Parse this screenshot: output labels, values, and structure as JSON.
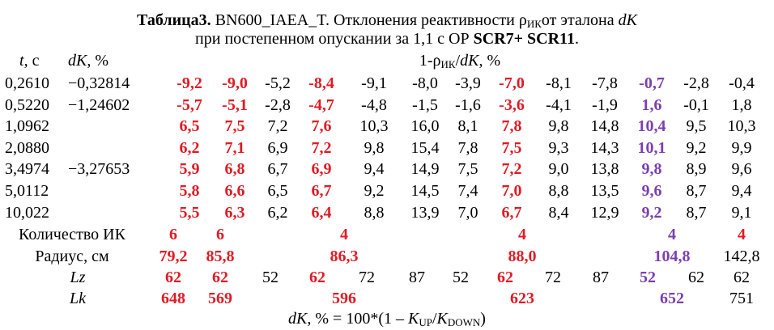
{
  "title": {
    "bold": "Таблица3.",
    "main": " BN600_IAEA_T. Отклонения реактивности ρ",
    "sub": "ИК",
    "mid": "от эталона ",
    "dk": "dK",
    "line2_a": "при постепенном опускании за 1,1 с ОР ",
    "line2_b": "SCR7+ SCR11",
    "line2_c": "."
  },
  "header": {
    "t": "t",
    "t_unit": ", с",
    "dk": "dK",
    "dk_unit": ", %",
    "rho_a": "1-ρ",
    "rho_sub": "ИК",
    "rho_b": "/",
    "rho_dk": "dK",
    "rho_c": ", %"
  },
  "rows": [
    {
      "t": "0,2610",
      "dk": "−0,32814",
      "v": [
        "-9,2",
        "-9,0",
        "-5,2",
        "-8,4",
        "-9,1",
        "-8,0",
        "-3,9",
        "-7,0",
        "-8,1",
        "-7,8",
        "-0,7",
        "-2,8",
        "-0,4"
      ]
    },
    {
      "t": "0,5220",
      "dk": "−1,24602",
      "v": [
        "-5,7",
        "-5,1",
        "-2,8",
        "-4,7",
        "-4,8",
        "-1,5",
        "-1,6",
        "-3,6",
        "-4,1",
        "-1,9",
        "1,6",
        "-0,1",
        "1,8"
      ]
    },
    {
      "t": "1,0962",
      "dk": "",
      "v": [
        "6,5",
        "7,5",
        "7,2",
        "7,6",
        "10,3",
        "16,0",
        "8,1",
        "7,8",
        "9,8",
        "14,8",
        "10,4",
        "9,5",
        "10,3"
      ]
    },
    {
      "t": "2,0880",
      "dk": "",
      "v": [
        "6,2",
        "7,1",
        "6,9",
        "7,2",
        "9,8",
        "15,4",
        "7,8",
        "7,5",
        "9,3",
        "14,3",
        "10,1",
        "9,2",
        "9,9"
      ]
    },
    {
      "t": "3,4974",
      "dk": "−3,27653",
      "v": [
        "5,9",
        "6,8",
        "6,7",
        "6,9",
        "9,4",
        "14,9",
        "7,5",
        "7,2",
        "9,0",
        "13,8",
        "9,8",
        "8,9",
        "9,6"
      ]
    },
    {
      "t": "5,0112",
      "dk": "",
      "v": [
        "5,8",
        "6,6",
        "6,5",
        "6,7",
        "9,2",
        "14,5",
        "7,4",
        "7,0",
        "8,8",
        "13,5",
        "9,6",
        "8,7",
        "9,4"
      ]
    },
    {
      "t": "10,022",
      "dk": "",
      "v": [
        "5,5",
        "6,3",
        "6,2",
        "6,4",
        "8,8",
        "13,9",
        "7,0",
        "6,7",
        "8,4",
        "12,9",
        "9,2",
        "8,7",
        "9,1"
      ]
    }
  ],
  "count_row": {
    "label": "Количество ИК",
    "values": [
      "6",
      "6",
      "4",
      "4",
      "4",
      "4"
    ]
  },
  "radius_row": {
    "label": "Радиус, см",
    "values": [
      "79,2",
      "85,8",
      "86,3",
      "88,0",
      "104,8",
      "142,8"
    ]
  },
  "lz_row": {
    "label": "Lz",
    "values": [
      "62",
      "62",
      "52",
      "62",
      "72",
      "87",
      "52",
      "62",
      "72",
      "87",
      "52",
      "62",
      "62"
    ]
  },
  "lk_row": {
    "label": "Lk",
    "values": [
      "648",
      "569",
      "596",
      "623",
      "652",
      "751"
    ]
  },
  "footer": {
    "dk": "dK",
    "a": ", % = 100*(1 – ",
    "k1": "K",
    "k1_sub": "UP",
    "slash": "/",
    "k2": "K",
    "k2_sub": "DOWN",
    "b": ")"
  },
  "colors": {
    "red": "#e01b24",
    "purple": "#7a3fb0"
  }
}
